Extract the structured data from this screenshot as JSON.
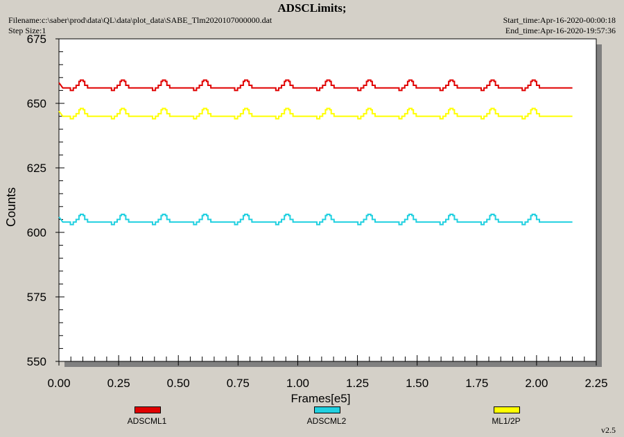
{
  "header": {
    "title": "ADSCLimits;",
    "filename": "Filename:c:\\saber\\prod\\data\\QL\\data\\plot_data\\SABE_Tlm2020107000000.dat",
    "step_size": "Step Size:1",
    "start_time": "Start_time:Apr-16-2020-00:00:18",
    "end_time": "End_time:Apr-16-2020-19:57:36"
  },
  "version": "v2.5",
  "colors": {
    "background": "#d4d0c8",
    "plot_area": "#ffffff",
    "shadow": "#808080",
    "ADSCML1": "#e00000",
    "ADSCML2": "#20d0e0",
    "ML1/2P": "#ffff00"
  },
  "chart_data": {
    "type": "line",
    "xlabel": "Frames[e5]",
    "ylabel": "Counts",
    "xlim": [
      0.0,
      2.25
    ],
    "ylim": [
      550,
      675
    ],
    "xticks": [
      "0.00",
      "0.25",
      "0.50",
      "0.75",
      "1.00",
      "1.25",
      "1.50",
      "1.75",
      "2.00",
      "2.25"
    ],
    "yticks": [
      "550",
      "575",
      "600",
      "625",
      "650",
      "675"
    ],
    "grid": false,
    "legend_position": "bottom",
    "x_end": 2.15,
    "period": 0.172,
    "series": [
      {
        "name": "ADSCML1",
        "color": "#e00000",
        "start": 658,
        "base": 656,
        "peak": 659
      },
      {
        "name": "ADSCML2",
        "color": "#20d0e0",
        "start": 606,
        "base": 604,
        "peak": 607
      },
      {
        "name": "ML1/2P",
        "color": "#ffff00",
        "start": 647,
        "base": 645,
        "peak": 648
      }
    ]
  }
}
